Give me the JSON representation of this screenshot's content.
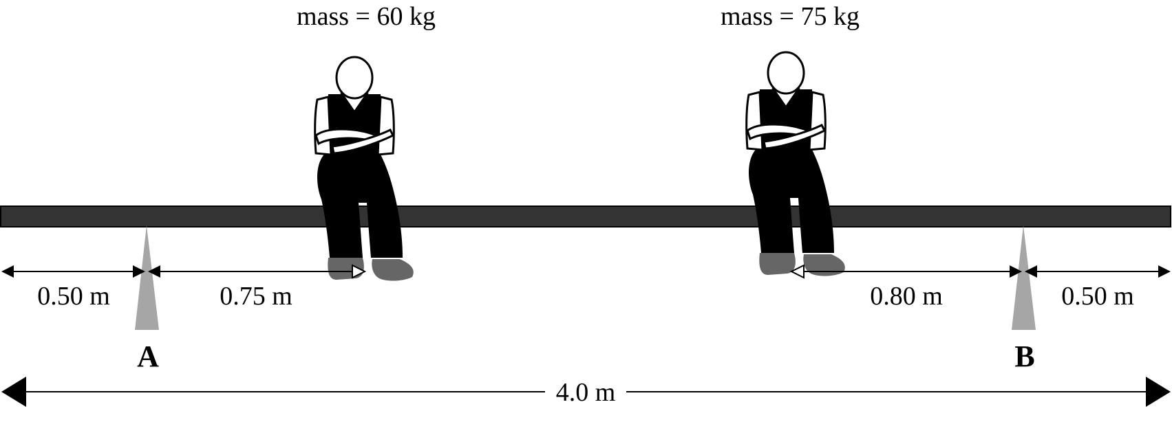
{
  "persons": [
    {
      "mass_label": "mass = 60 kg"
    },
    {
      "mass_label": "mass = 75 kg"
    }
  ],
  "supports": [
    {
      "label": "A"
    },
    {
      "label": "B"
    }
  ],
  "dimensions": {
    "left_overhang": "0.50 m",
    "a_to_person1": "0.75 m",
    "person2_to_b": "0.80 m",
    "right_overhang": "0.50 m",
    "total_length": "4.0 m"
  },
  "colors": {
    "plank": "#333333",
    "support": "#a6a6a6",
    "shoes": "#666666",
    "clothing": "#000000"
  }
}
